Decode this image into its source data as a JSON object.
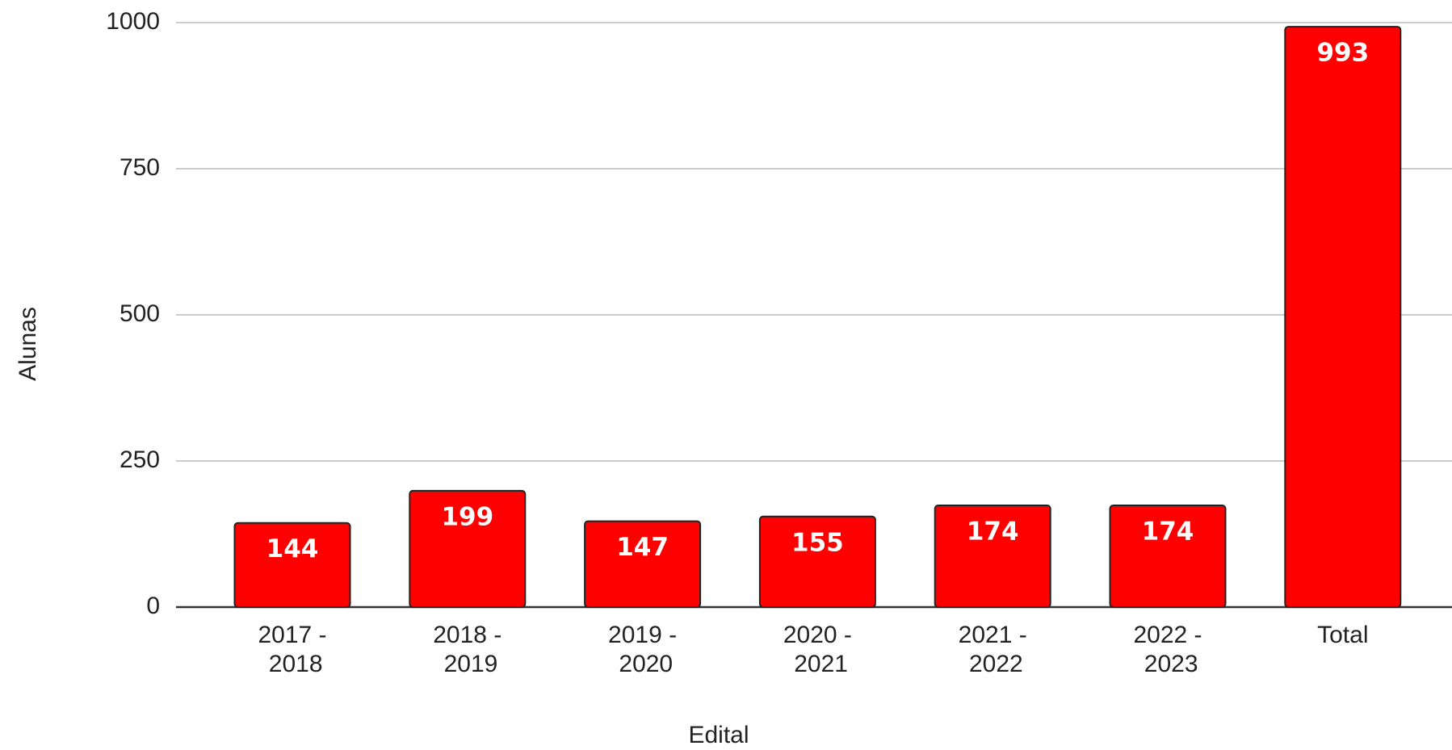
{
  "chart_data": {
    "type": "bar",
    "x_label": "Edital",
    "y_label": "Alunas",
    "categories": [
      "2017 - 2018",
      "2018 - 2019",
      "2019 - 2020",
      "2020 - 2021",
      "2021 - 2022",
      "2022 - 2023",
      "Total"
    ],
    "values": [
      144,
      199,
      147,
      155,
      174,
      174,
      993
    ],
    "color": "#ff0000",
    "ylim": [
      0,
      1000
    ],
    "yticks": [
      0,
      250,
      500,
      750,
      1000
    ],
    "grid": true
  }
}
